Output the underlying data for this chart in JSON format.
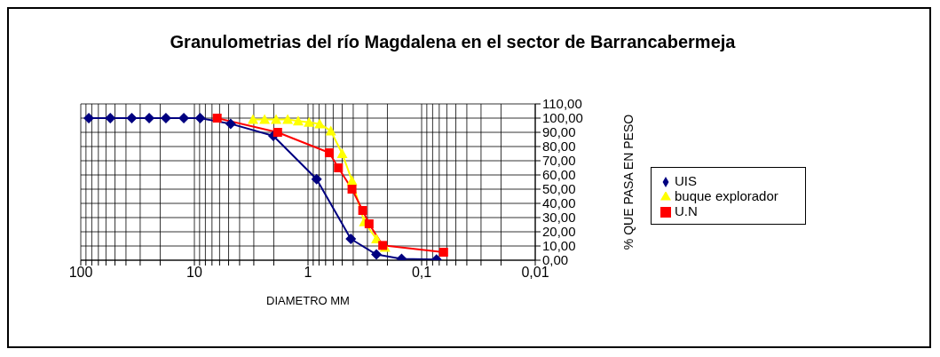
{
  "chart_data": {
    "type": "line",
    "title": "Granulometrias del río Magdalena en el sector de Barrancabermeja",
    "xlabel": "DIAMETRO MM",
    "ylabel": "% QUE PASA EN PESO",
    "log": "x",
    "xlim": [
      100,
      0.01
    ],
    "xticks": [
      100,
      {
        "value": 90,
        "label": null
      },
      {
        "value": 80,
        "label": null
      },
      {
        "value": 70,
        "label": null
      },
      {
        "value": 60,
        "label": null
      },
      {
        "value": 50,
        "label": null
      },
      {
        "value": 40,
        "label": null
      },
      {
        "value": 30,
        "label": null
      },
      {
        "value": 20,
        "label": null
      },
      10,
      {
        "value": 9,
        "label": null
      },
      {
        "value": 8,
        "label": null
      },
      {
        "value": 7,
        "label": null
      },
      {
        "value": 6,
        "label": null
      },
      {
        "value": 5,
        "label": null
      },
      {
        "value": 4,
        "label": null
      },
      {
        "value": 3,
        "label": null
      },
      {
        "value": 2,
        "label": null
      },
      1,
      {
        "value": 0.9,
        "label": null
      },
      {
        "value": 0.8,
        "label": null
      },
      {
        "value": 0.7,
        "label": null
      },
      {
        "value": 0.6,
        "label": null
      },
      {
        "value": 0.5,
        "label": null
      },
      {
        "value": 0.4,
        "label": null
      },
      {
        "value": 0.3,
        "label": null
      },
      {
        "value": 0.2,
        "label": null
      },
      {
        "value": 0.1,
        "label": "0,1"
      },
      {
        "value": 0.09,
        "label": null
      },
      {
        "value": 0.08,
        "label": null
      },
      {
        "value": 0.07,
        "label": null
      },
      {
        "value": 0.06,
        "label": null
      },
      {
        "value": 0.05,
        "label": null
      },
      {
        "value": 0.04,
        "label": null
      },
      {
        "value": 0.03,
        "label": null
      },
      {
        "value": 0.02,
        "label": null
      },
      {
        "value": 0.01,
        "label": "0,01"
      }
    ],
    "ylim": [
      0,
      110
    ],
    "yticks": [
      {
        "value": 0,
        "label": "0,00"
      },
      {
        "value": 10,
        "label": "10,00"
      },
      {
        "value": 20,
        "label": "20,00"
      },
      {
        "value": 30,
        "label": "30,00"
      },
      {
        "value": 40,
        "label": "40,00"
      },
      {
        "value": 50,
        "label": "50,00"
      },
      {
        "value": 60,
        "label": "60,00"
      },
      {
        "value": 70,
        "label": "70,00"
      },
      {
        "value": 80,
        "label": "80,00"
      },
      {
        "value": 90,
        "label": "90,00"
      },
      {
        "value": 100,
        "label": "100,00"
      },
      {
        "value": 110,
        "label": "110,00"
      }
    ],
    "grid": true,
    "legend": "right",
    "series": [
      {
        "name": "UIS",
        "color": "#000080",
        "marker": "diamond",
        "x": [
          85,
          55,
          35.6,
          25,
          17.8,
          12.4,
          8.9,
          4.8,
          2.02,
          0.84,
          0.42,
          0.25,
          0.15,
          0.074
        ],
        "values": [
          100,
          100,
          100,
          100,
          100,
          100,
          100,
          96,
          87.5,
          57,
          15,
          4,
          1,
          0.4
        ]
      },
      {
        "name": "buque explorador",
        "color": "#ffff00",
        "marker": "triangle",
        "x": [
          3.05,
          2.41,
          1.91,
          1.51,
          1.22,
          0.98,
          0.79,
          0.63,
          0.5,
          0.41,
          0.32,
          0.25,
          0.21
        ],
        "values": [
          99,
          99,
          99,
          99,
          98,
          97,
          96,
          91,
          75,
          56,
          27,
          15,
          9
        ]
      },
      {
        "name": "U.N",
        "color": "#ff0000",
        "marker": "square",
        "x": [
          6.3,
          1.85,
          0.65,
          0.54,
          0.41,
          0.33,
          0.29,
          0.22,
          0.064
        ],
        "values": [
          100,
          90,
          75.6,
          65,
          50,
          35,
          25.6,
          10.4,
          5.6
        ]
      }
    ]
  }
}
